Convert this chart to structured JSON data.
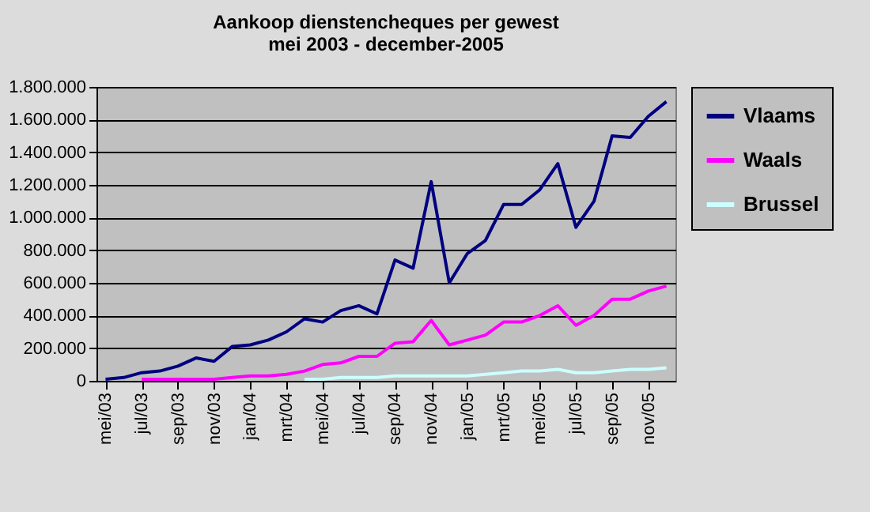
{
  "chart_data": {
    "type": "line",
    "title": "Aankoop dienstencheques per gewest",
    "subtitle": "mei 2003 - december-2005",
    "categories": [
      "mei/03",
      null,
      "jul/03",
      null,
      "sep/03",
      null,
      "nov/03",
      null,
      "jan/04",
      null,
      "mrt/04",
      null,
      "mei/04",
      null,
      "jul/04",
      null,
      "sep/04",
      null,
      "nov/04",
      null,
      "jan/05",
      null,
      "mrt/05",
      null,
      "mei/05",
      null,
      "jul/05",
      null,
      "sep/05",
      null,
      "nov/05",
      null
    ],
    "series": [
      {
        "name": "Vlaams",
        "color": "#000080",
        "values": [
          10000,
          20000,
          50000,
          60000,
          90000,
          140000,
          120000,
          210000,
          220000,
          250000,
          300000,
          380000,
          360000,
          430000,
          460000,
          410000,
          740000,
          690000,
          1220000,
          600000,
          780000,
          860000,
          1080000,
          1080000,
          1170000,
          1330000,
          940000,
          1100000,
          1500000,
          1490000,
          1620000,
          1710000
        ]
      },
      {
        "name": "Waals",
        "color": "#ff00ff",
        "values": [
          null,
          null,
          10000,
          10000,
          10000,
          10000,
          10000,
          20000,
          30000,
          30000,
          40000,
          60000,
          100000,
          110000,
          150000,
          150000,
          230000,
          240000,
          370000,
          220000,
          250000,
          280000,
          360000,
          360000,
          400000,
          460000,
          340000,
          400000,
          500000,
          500000,
          550000,
          580000
        ]
      },
      {
        "name": "Brussel",
        "color": "#ccffff",
        "values": [
          null,
          null,
          null,
          null,
          null,
          null,
          null,
          null,
          null,
          null,
          null,
          10000,
          10000,
          20000,
          20000,
          20000,
          30000,
          30000,
          30000,
          30000,
          30000,
          40000,
          50000,
          60000,
          60000,
          70000,
          50000,
          50000,
          60000,
          70000,
          70000,
          80000
        ]
      }
    ],
    "ylim": [
      0,
      1800000
    ],
    "yticks": [
      {
        "value": 0,
        "label": "0"
      },
      {
        "value": 200000,
        "label": "200.000"
      },
      {
        "value": 400000,
        "label": "400.000"
      },
      {
        "value": 600000,
        "label": "600.000"
      },
      {
        "value": 800000,
        "label": "800.000"
      },
      {
        "value": 1000000,
        "label": "1.000.000"
      },
      {
        "value": 1200000,
        "label": "1.200.000"
      },
      {
        "value": 1400000,
        "label": "1.400.000"
      },
      {
        "value": 1600000,
        "label": "1.600.000"
      },
      {
        "value": 1800000,
        "label": "1.800.000"
      }
    ],
    "grid": "y",
    "legend": "right",
    "marker": "none",
    "line_style": "solid"
  }
}
